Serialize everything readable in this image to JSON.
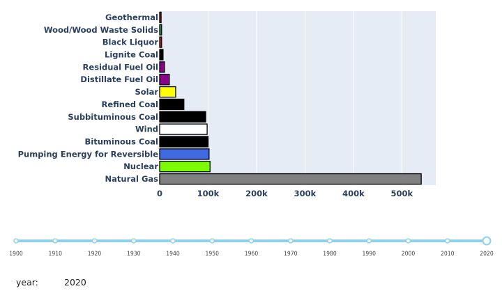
{
  "chart_data": {
    "type": "bar",
    "orientation": "horizontal",
    "categories": [
      "Natural Gas",
      "Nuclear",
      "Pumping Energy for Reversible",
      "Bituminous Coal",
      "Wind",
      "Subbituminous Coal",
      "Refined Coal",
      "Solar",
      "Distillate Fuel Oil",
      "Residual Fuel Oil",
      "Lignite Coal",
      "Black Liquor",
      "Wood/Wood Waste Solids",
      "Geothermal"
    ],
    "values": [
      540000,
      104000,
      102000,
      100000,
      98000,
      95000,
      50000,
      33000,
      20000,
      10000,
      7000,
      4000,
      4000,
      3000
    ],
    "colors": [
      "#808080",
      "#7cfc00",
      "#4169e1",
      "#000000",
      "#ffffff",
      "#000000",
      "#000000",
      "#ffff00",
      "#8b008b",
      "#8b008b",
      "#000000",
      "#b22222",
      "#2e8b57",
      "#b22222"
    ],
    "xlim": [
      0,
      570000
    ],
    "xticks": [
      0,
      100000,
      200000,
      300000,
      400000,
      500000
    ],
    "xtick_labels": [
      "0",
      "100k",
      "200k",
      "300k",
      "400k",
      "500k"
    ],
    "grid": true,
    "plot_background": "#e5ecf6",
    "title": "",
    "xlabel": "",
    "ylabel": ""
  },
  "slider": {
    "label": "year:",
    "current_value": "2020",
    "ticks": [
      "1900",
      "1910",
      "1920",
      "1930",
      "1940",
      "1950",
      "1960",
      "1970",
      "1980",
      "1990",
      "2000",
      "2010",
      "2020"
    ],
    "selected_index": 12,
    "color": "#8fd0ec"
  }
}
